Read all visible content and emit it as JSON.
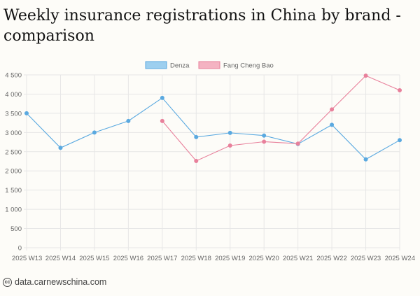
{
  "title": "Weekly insurance registrations in China by brand - comparison",
  "source": "data.carnewschina.com",
  "icons": {
    "source_icon": "creative-commons-icon"
  },
  "colors": {
    "denza_line": "#5aa9e0",
    "denza_fill": "#9dcfef",
    "fcb_line": "#e8809b",
    "fcb_fill": "#f4b3c2",
    "grid": "#e6e6e6",
    "background": "#fdfcf8"
  },
  "chart_data": {
    "type": "line",
    "title": "Weekly insurance registrations in China by brand - comparison",
    "categories": [
      "2025 W13",
      "2025 W14",
      "2025 W15",
      "2025 W16",
      "2025 W17",
      "2025 W18",
      "2025 W19",
      "2025 W20",
      "2025 W21",
      "2025 W22",
      "2025 W23",
      "2025 W24"
    ],
    "series": [
      {
        "name": "Denza",
        "values": [
          3500,
          2600,
          3000,
          3300,
          3900,
          2880,
          2990,
          2920,
          2700,
          3200,
          2300,
          2800
        ]
      },
      {
        "name": "Fang Cheng Bao",
        "values": [
          null,
          null,
          null,
          null,
          3300,
          2260,
          2660,
          2760,
          2710,
          3600,
          4480,
          4100
        ]
      }
    ],
    "y_ticks": [
      "0",
      "500",
      "1 000",
      "1 500",
      "2 000",
      "2 500",
      "3 000",
      "3 500",
      "4 000",
      "4 500"
    ],
    "ylim": [
      0,
      4500
    ],
    "xlabel": "",
    "ylabel": "",
    "grid": true,
    "legend_position": "top-center"
  }
}
